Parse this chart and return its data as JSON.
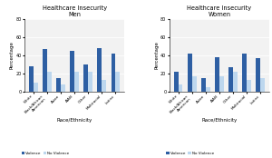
{
  "men": {
    "title": "Healthcare Insecurity",
    "subtitle": "Men",
    "categories": [
      "White",
      "Black/African\nAmerican",
      "Asian",
      "AIAN",
      "Other",
      "Multiracial",
      "Latinx"
    ],
    "violence": [
      28,
      47,
      15,
      45,
      30,
      48,
      42
    ],
    "no_violence": [
      10,
      22,
      8,
      22,
      22,
      13,
      22
    ],
    "ylim": [
      0,
      80
    ],
    "yticks": [
      0,
      20,
      40,
      60,
      80
    ]
  },
  "women": {
    "title": "Healthcare Insecurity",
    "subtitle": "Women",
    "categories": [
      "White",
      "Black/African\nAmerican",
      "Asian",
      "AIAN",
      "Other",
      "Multiracial",
      "Latinx"
    ],
    "violence": [
      22,
      42,
      15,
      38,
      27,
      42,
      37
    ],
    "no_violence": [
      8,
      17,
      5,
      17,
      22,
      13,
      15
    ],
    "ylim": [
      0,
      80
    ],
    "yticks": [
      0,
      20,
      40,
      60,
      80
    ]
  },
  "violence_color": "#2E5FA3",
  "no_violence_color": "#BDD7EE",
  "bar_width": 0.32,
  "xlabel": "Race/Ethnicity",
  "ylabel": "Percentage",
  "legend_labels": [
    "Violence",
    "No Violence"
  ],
  "bg_color": "#F2F2F2"
}
